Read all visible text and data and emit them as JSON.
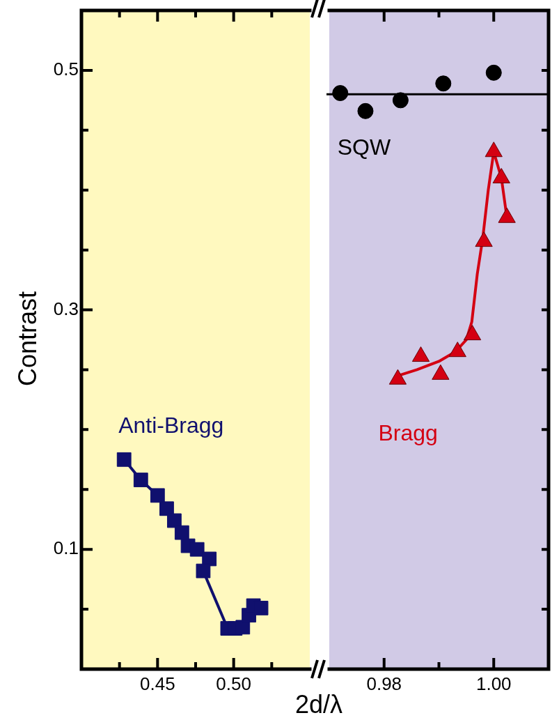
{
  "chart_data": [
    {
      "type": "line",
      "ylabel": "Contrast",
      "xlabel": "2d/λ",
      "xlim": [
        0.4,
        0.55
      ],
      "ylim": [
        0,
        0.55
      ],
      "xticks": [
        {
          "value": 0.425,
          "label": null
        },
        0.45,
        {
          "value": 0.475,
          "label": null
        },
        {
          "value": 0.5,
          "label": "0.50"
        },
        {
          "value": 0.525,
          "label": null
        }
      ],
      "yticks": [
        {
          "value": 0.05,
          "label": null
        },
        0.1,
        {
          "value": 0.15,
          "label": null
        },
        {
          "value": 0.2,
          "label": null
        },
        {
          "value": 0.25,
          "label": null
        },
        0.3,
        {
          "value": 0.35,
          "label": null
        },
        {
          "value": 0.4,
          "label": null
        },
        {
          "value": 0.45,
          "label": null
        },
        0.5
      ],
      "grid": false,
      "legend": false,
      "bands": [
        {
          "axis": "x",
          "from": 0.4,
          "to": 0.55,
          "color": "#fff9bf"
        }
      ],
      "series": [
        {
          "name": "Anti-Bragg",
          "color": "#10106e",
          "marker": "square",
          "line_style": "solid",
          "x": [
            0.428,
            0.439,
            0.45,
            0.456,
            0.461,
            0.466,
            0.47,
            0.476,
            0.484,
            0.48,
            0.496,
            0.501,
            0.506,
            0.51,
            0.513,
            0.518
          ],
          "values": [
            0.175,
            0.158,
            0.145,
            0.134,
            0.124,
            0.114,
            0.103,
            0.1,
            0.092,
            0.082,
            0.034,
            0.034,
            0.035,
            0.045,
            0.053,
            0.051
          ]
        }
      ]
    },
    {
      "type": "scatter",
      "xlim": [
        0.97,
        1.01
      ],
      "ylim": [
        0,
        0.55
      ],
      "xticks": [
        {
          "value": 0.98,
          "label": "0.98"
        },
        {
          "value": 0.99,
          "label": null
        },
        {
          "value": 1,
          "label": "1.00"
        }
      ],
      "yticks": [
        {
          "value": 0.05,
          "label": null
        },
        {
          "value": 0.1,
          "label": null
        },
        {
          "value": 0.15,
          "label": null
        },
        {
          "value": 0.2,
          "label": null
        },
        {
          "value": 0.25,
          "label": null
        },
        {
          "value": 0.3,
          "label": null
        },
        {
          "value": 0.35,
          "label": null
        },
        {
          "value": 0.4,
          "label": null
        },
        {
          "value": 0.45,
          "label": null
        },
        {
          "value": 0.5,
          "label": null
        }
      ],
      "tick_labels": "x",
      "grid": false,
      "legend": false,
      "bands": [
        {
          "axis": "x",
          "from": 0.97,
          "to": 1.01,
          "color": "#d1cae6"
        }
      ],
      "ref_lines": [
        {
          "axis": "y",
          "value": 0.48,
          "color": "#000000",
          "line_style": "solid"
        }
      ],
      "series": [
        {
          "name": "SQW",
          "color": "#000000",
          "marker": "circle",
          "x": [
            0.972,
            0.9766,
            0.983,
            0.9908,
            1.0
          ],
          "values": [
            0.481,
            0.466,
            0.475,
            0.489,
            0.498
          ]
        },
        {
          "name": "Bragg",
          "color": "#d40012",
          "marker": "triangle",
          "x": [
            0.9825,
            0.9867,
            0.9903,
            0.9934,
            0.9961,
            0.9982,
            1.0,
            1.0014,
            1.0024
          ],
          "values": [
            0.242,
            0.261,
            0.246,
            0.265,
            0.279,
            0.357,
            0.432,
            0.41,
            0.377
          ]
        },
        {
          "type": "line",
          "color": "#d40012",
          "marker": "none",
          "line_style": "solid",
          "x": [
            0.9825,
            0.986,
            0.99,
            0.993,
            0.995,
            0.996,
            0.997,
            0.998,
            0.999,
            1.0,
            1.0014,
            1.0024
          ],
          "values": [
            0.245,
            0.25,
            0.257,
            0.265,
            0.275,
            0.29,
            0.33,
            0.36,
            0.4,
            0.432,
            0.41,
            0.377
          ]
        }
      ]
    }
  ]
}
